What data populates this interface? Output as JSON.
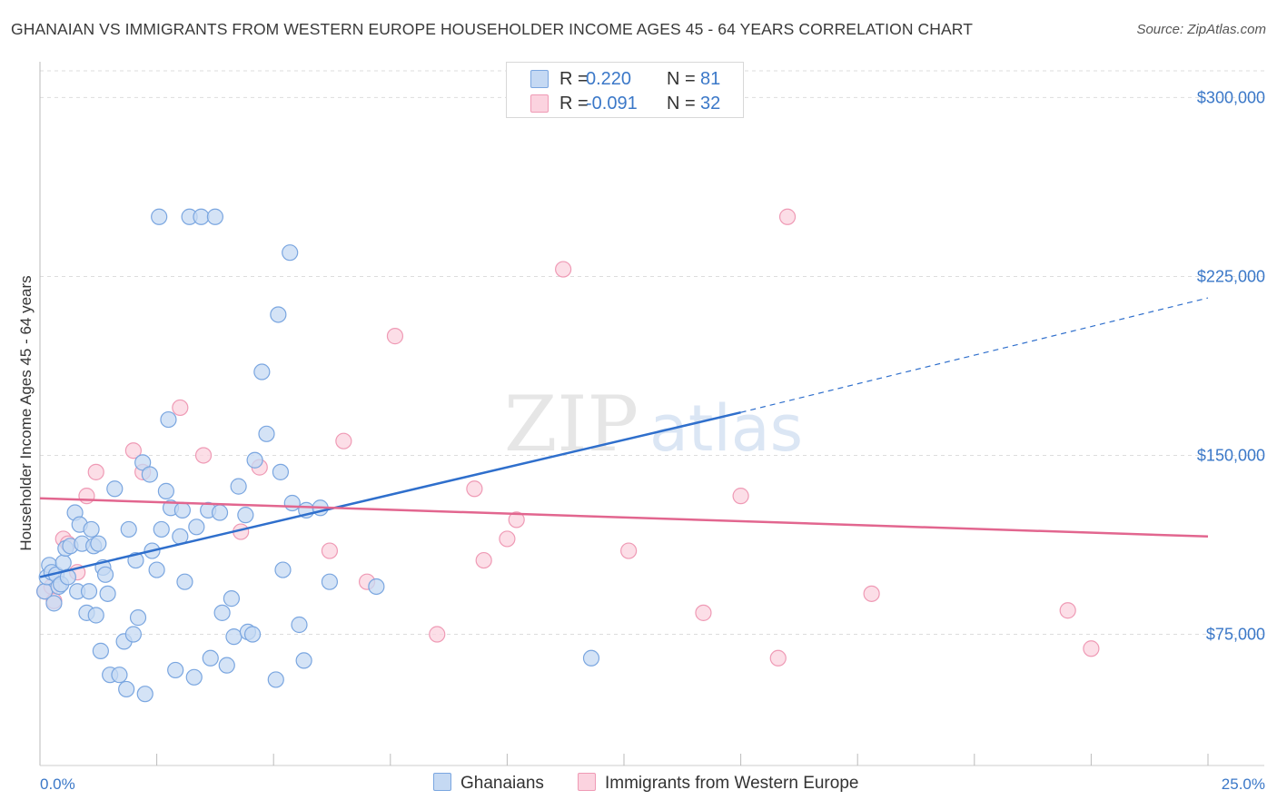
{
  "title": "GHANAIAN VS IMMIGRANTS FROM WESTERN EUROPE HOUSEHOLDER INCOME AGES 45 - 64 YEARS CORRELATION CHART",
  "source": "Source: ZipAtlas.com",
  "watermark": {
    "zip": "ZIP",
    "atlas": "atlas"
  },
  "legend": {
    "r_label": "R =",
    "n_label": "N =",
    "series": [
      {
        "name": "Ghanaians",
        "r": "0.220",
        "n": "81",
        "fill": "#c5d9f3",
        "stroke": "#7aa6e0"
      },
      {
        "name": "Immigrants from Western Europe",
        "r": "-0.091",
        "n": "32",
        "fill": "#fbd3df",
        "stroke": "#ef9ab5"
      }
    ]
  },
  "colors": {
    "blue": "#3b78c8",
    "blue_line": "#2f6fcc",
    "pink_line": "#e2668f",
    "grid": "#dddddd"
  },
  "chart_data": {
    "type": "scatter",
    "title": "GHANAIAN VS IMMIGRANTS FROM WESTERN EUROPE HOUSEHOLDER INCOME AGES 45 - 64 YEARS CORRELATION CHART",
    "xlabel": "",
    "ylabel": "Householder Income Ages 45 - 64 years",
    "x_unit": "%",
    "xlim": [
      0,
      25
    ],
    "ylim": [
      20000,
      315000
    ],
    "x_tick_labels": [
      "0.0%",
      "25.0%"
    ],
    "y_ticks": [
      75000,
      150000,
      225000,
      300000
    ],
    "y_tick_labels": [
      "$75,000",
      "$150,000",
      "$225,000",
      "$300,000"
    ],
    "grid": true,
    "series": [
      {
        "name": "Ghanaians",
        "x": [
          0.1,
          0.15,
          0.2,
          0.25,
          0.3,
          0.35,
          0.4,
          0.45,
          0.5,
          0.55,
          0.6,
          0.65,
          0.75,
          0.8,
          0.85,
          0.9,
          1.0,
          1.05,
          1.1,
          1.15,
          1.2,
          1.25,
          1.3,
          1.35,
          1.4,
          1.45,
          1.5,
          1.6,
          1.7,
          1.8,
          1.85,
          1.9,
          2.0,
          2.05,
          2.1,
          2.2,
          2.25,
          2.35,
          2.4,
          2.5,
          2.55,
          2.6,
          2.7,
          2.75,
          2.8,
          2.9,
          3.0,
          3.05,
          3.1,
          3.2,
          3.3,
          3.35,
          3.45,
          3.6,
          3.65,
          3.75,
          3.85,
          3.9,
          4.0,
          4.1,
          4.15,
          4.25,
          4.4,
          4.45,
          4.55,
          4.6,
          4.75,
          4.85,
          5.05,
          5.1,
          5.15,
          5.2,
          5.35,
          5.4,
          5.55,
          5.65,
          5.7,
          6.0,
          6.2,
          7.2,
          11.8
        ],
        "y": [
          93000,
          99000,
          104000,
          101000,
          88000,
          100000,
          95000,
          96000,
          105000,
          111000,
          99000,
          112000,
          126000,
          93000,
          121000,
          113000,
          84000,
          93000,
          119000,
          112000,
          83000,
          113000,
          68000,
          103000,
          100000,
          92000,
          58000,
          136000,
          58000,
          72000,
          52000,
          119000,
          75000,
          106000,
          82000,
          147000,
          50000,
          142000,
          110000,
          102000,
          250000,
          119000,
          135000,
          165000,
          128000,
          60000,
          116000,
          127000,
          97000,
          250000,
          57000,
          120000,
          250000,
          127000,
          65000,
          250000,
          126000,
          84000,
          62000,
          90000,
          74000,
          137000,
          125000,
          76000,
          75000,
          148000,
          185000,
          159000,
          56000,
          209000,
          143000,
          102000,
          235000,
          130000,
          79000,
          64000,
          127000,
          128000,
          97000,
          95000,
          65000
        ]
      },
      {
        "name": "Immigrants from Western Europe",
        "x": [
          0.1,
          0.25,
          0.3,
          0.5,
          0.6,
          0.8,
          1.0,
          1.2,
          2.0,
          2.2,
          3.0,
          3.5,
          4.3,
          4.7,
          6.2,
          6.5,
          7.0,
          7.6,
          8.5,
          9.3,
          9.5,
          10.0,
          10.2,
          11.2,
          12.6,
          14.2,
          15.0,
          15.8,
          16.0,
          17.8,
          22.0,
          22.5
        ],
        "y": [
          93000,
          95000,
          89000,
          115000,
          113000,
          101000,
          133000,
          143000,
          152000,
          143000,
          170000,
          150000,
          118000,
          145000,
          110000,
          156000,
          97000,
          200000,
          75000,
          136000,
          106000,
          115000,
          123000,
          228000,
          110000,
          84000,
          133000,
          65000,
          250000,
          92000,
          85000,
          69000
        ]
      }
    ],
    "trend_lines": [
      {
        "series": "Ghanaians",
        "x_start": 0,
        "y_start": 99000,
        "x_solid_end": 15,
        "y_solid_end": 168000,
        "x_end": 25,
        "y_end": 216000,
        "extension": "dashed"
      },
      {
        "series": "Immigrants from Western Europe",
        "x_start": 0,
        "y_start": 132000,
        "x_end": 25,
        "y_end": 116000
      }
    ]
  }
}
